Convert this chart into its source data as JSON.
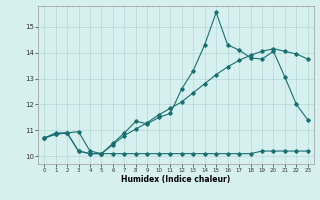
{
  "title": "",
  "xlabel": "Humidex (Indice chaleur)",
  "bg_color": "#d6f0f0",
  "grid_color": "#b8d8d8",
  "line_color": "#1a7070",
  "xlim": [
    -0.5,
    23.5
  ],
  "ylim": [
    9.7,
    15.8
  ],
  "xticks": [
    0,
    1,
    2,
    3,
    4,
    5,
    6,
    7,
    8,
    9,
    10,
    11,
    12,
    13,
    14,
    15,
    16,
    17,
    18,
    19,
    20,
    21,
    22,
    23
  ],
  "yticks": [
    10,
    11,
    12,
    13,
    14,
    15
  ],
  "line1_x": [
    0,
    1,
    2,
    3,
    4,
    5,
    6,
    7,
    8,
    9,
    10,
    11,
    12,
    13,
    14,
    15,
    16,
    17,
    18,
    19,
    20,
    21,
    22,
    23
  ],
  "line1_y": [
    10.7,
    10.9,
    10.9,
    10.2,
    10.1,
    10.1,
    10.5,
    10.9,
    11.35,
    11.25,
    11.5,
    11.65,
    12.6,
    13.3,
    14.3,
    15.55,
    14.3,
    14.1,
    13.8,
    13.75,
    14.05,
    13.05,
    12.0,
    11.4
  ],
  "line2_x": [
    0,
    1,
    2,
    3,
    4,
    5,
    6,
    7,
    8,
    9,
    10,
    11,
    12,
    13,
    14,
    15,
    16,
    17,
    18,
    19,
    20,
    21,
    22,
    23
  ],
  "line2_y": [
    10.7,
    10.85,
    10.9,
    10.95,
    10.2,
    10.1,
    10.45,
    10.8,
    11.05,
    11.3,
    11.6,
    11.85,
    12.1,
    12.45,
    12.8,
    13.15,
    13.45,
    13.7,
    13.9,
    14.05,
    14.15,
    14.05,
    13.95,
    13.75
  ],
  "line3_x": [
    0,
    1,
    2,
    3,
    4,
    5,
    6,
    7,
    8,
    9,
    10,
    11,
    12,
    13,
    14,
    15,
    16,
    17,
    18,
    19,
    20,
    21,
    22,
    23
  ],
  "line3_y": [
    10.7,
    10.85,
    10.9,
    10.2,
    10.1,
    10.1,
    10.1,
    10.1,
    10.1,
    10.1,
    10.1,
    10.1,
    10.1,
    10.1,
    10.1,
    10.1,
    10.1,
    10.1,
    10.1,
    10.2,
    10.2,
    10.2,
    10.2,
    10.2
  ]
}
